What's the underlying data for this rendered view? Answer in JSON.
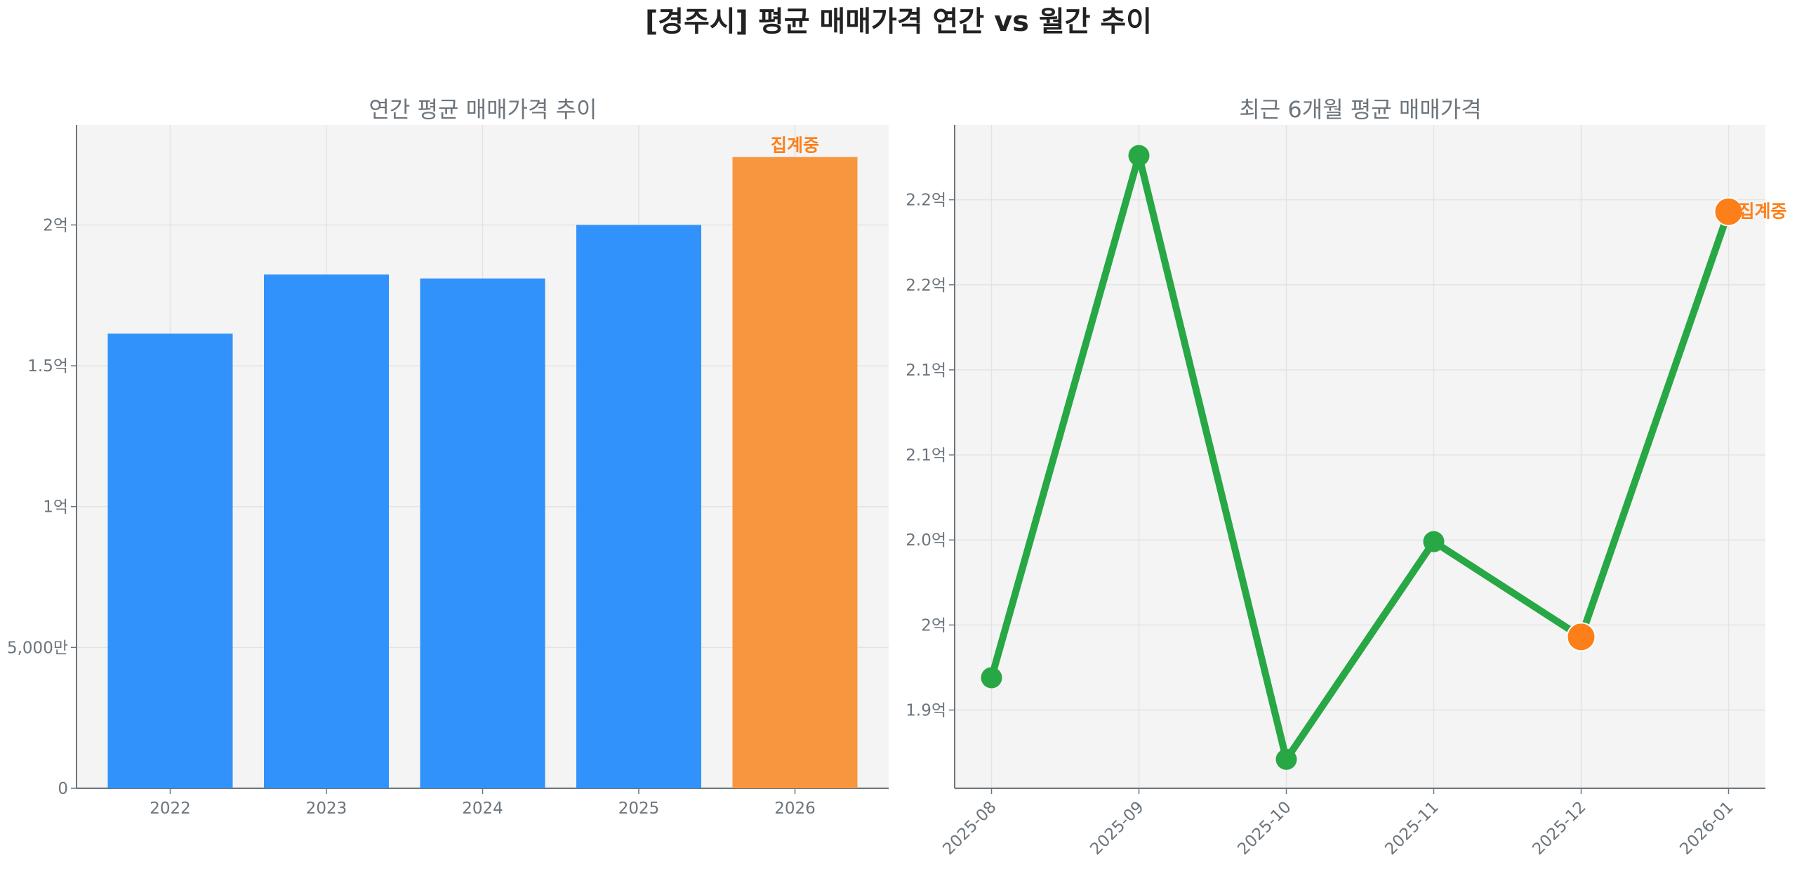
{
  "title": "[경주시] 평균 매매가격 연간 vs 월간 추이",
  "colors": {
    "bar": "#3192fb",
    "bar_partial": "#f8963f",
    "line": "#28a745",
    "marker_partial": "#fd7f1a",
    "annotation": "#fd7f1a",
    "plot_bg": "#f4f4f4",
    "text": "#6c757d"
  },
  "chart_data": [
    {
      "type": "bar",
      "title": "연간 평균 매매가격 추이",
      "categories": [
        "2022",
        "2023",
        "2024",
        "2025",
        "2026"
      ],
      "values": [
        1.614,
        1.824,
        1.81,
        2.0,
        2.241
      ],
      "unit": "억",
      "partial": [
        false,
        false,
        false,
        false,
        true
      ],
      "annotation": {
        "category": "2026",
        "text": "집계중"
      },
      "ylim": [
        0,
        2.355
      ],
      "yticks": [
        0,
        0.5,
        1,
        1.5,
        2
      ],
      "ytick_labels": [
        "0",
        "5,000만",
        "1억",
        "1.5억",
        "2억"
      ],
      "grid": true,
      "xlabel": "",
      "ylabel": ""
    },
    {
      "type": "line",
      "title": "최근 6개월 평균 매매가격",
      "categories": [
        "2025-08",
        "2025-09",
        "2025-10",
        "2025-11",
        "2025-12",
        "2026-01"
      ],
      "values": [
        1.969,
        2.276,
        1.921,
        2.049,
        1.993,
        2.243
      ],
      "unit": "억",
      "partial": [
        false,
        false,
        false,
        false,
        true,
        true
      ],
      "annotation": {
        "category": "2026-01",
        "text": "집계중"
      },
      "ylim": [
        1.904,
        2.294
      ],
      "yticks": [
        1.95,
        2.0,
        2.05,
        2.1,
        2.15,
        2.2,
        2.25
      ],
      "ytick_labels": [
        "1.9억",
        "2억",
        "2.0억",
        "2.1억",
        "2.1억",
        "2.2억",
        "2.2억"
      ],
      "grid": true,
      "xlabel": "",
      "ylabel": ""
    }
  ]
}
